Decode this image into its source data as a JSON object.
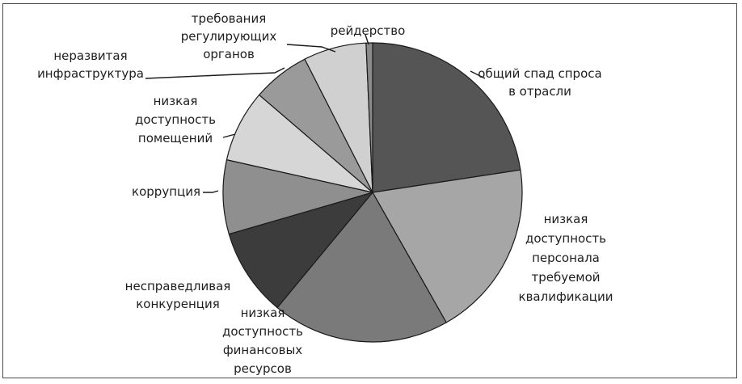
{
  "chart_data": {
    "type": "pie",
    "title": "",
    "slices": [
      {
        "label_lines": [
          "общий спад спроса",
          "в отрасли"
        ],
        "value": 22.6,
        "color": "#555555"
      },
      {
        "label_lines": [
          "низкая",
          "доступность",
          "персонала",
          "требуемой",
          "квалификации"
        ],
        "value": 19.2,
        "color": "#a6a6a6"
      },
      {
        "label_lines": [
          "низкая",
          "доступность",
          "финансовых",
          "ресурсов"
        ],
        "value": 19.2,
        "color": "#7a7a7a"
      },
      {
        "label_lines": [
          "несправедливая",
          "конкуренция"
        ],
        "value": 9.5,
        "color": "#3c3c3c"
      },
      {
        "label_lines": [
          "коррупция"
        ],
        "value": 8.0,
        "color": "#8f8f8f"
      },
      {
        "label_lines": [
          "низкая",
          "доступность",
          "помещений"
        ],
        "value": 7.8,
        "color": "#d6d6d6"
      },
      {
        "label_lines": [
          "неразвитая",
          "инфраструктура"
        ],
        "value": 6.2,
        "color": "#9a9a9a"
      },
      {
        "label_lines": [
          "требования",
          "регулирующих",
          "органов"
        ],
        "value": 6.8,
        "color": "#d0d0d0"
      },
      {
        "label_lines": [
          "рейдерство"
        ],
        "value": 0.7,
        "color": "#8a8a8a"
      }
    ]
  }
}
